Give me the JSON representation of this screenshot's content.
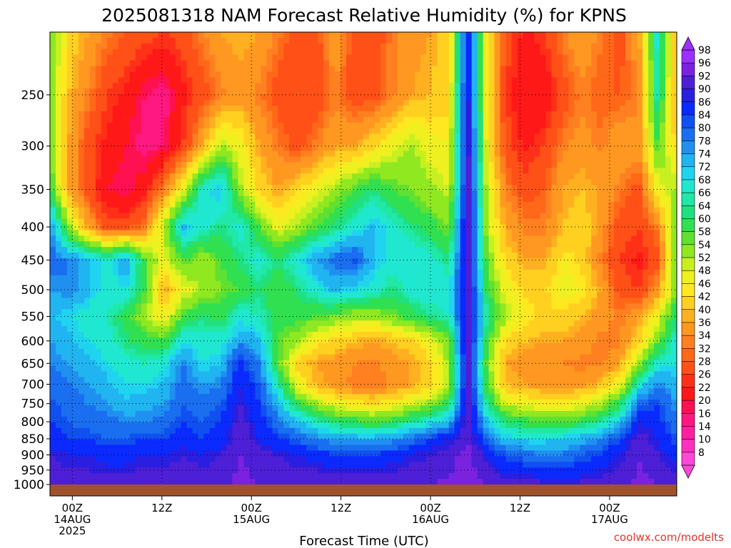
{
  "chart_data": {
    "type": "heatmap",
    "title": "2025081318 NAM Forecast Relative Humidity (%) for KPNS",
    "xlabel": "Forecast Time (UTC)",
    "ylabel": "",
    "credit": "coolwx.com/modelts",
    "y_ticks": [
      "250",
      "300",
      "350",
      "400",
      "450",
      "500",
      "550",
      "600",
      "650",
      "700",
      "750",
      "800",
      "850",
      "900",
      "950",
      "1000"
    ],
    "y_values": [
      250,
      300,
      350,
      400,
      450,
      500,
      550,
      600,
      650,
      700,
      750,
      800,
      850,
      900,
      950,
      1000
    ],
    "y_scale": "log",
    "y_range": [
      200,
      1000
    ],
    "x_ticks": [
      {
        "hour": 0,
        "lines": [
          "00Z",
          "14AUG",
          "2025"
        ]
      },
      {
        "hour": 12,
        "lines": [
          "12Z"
        ]
      },
      {
        "hour": 24,
        "lines": [
          "00Z",
          "15AUG"
        ]
      },
      {
        "hour": 36,
        "lines": [
          "12Z"
        ]
      },
      {
        "hour": 48,
        "lines": [
          "00Z",
          "16AUG"
        ]
      },
      {
        "hour": 60,
        "lines": [
          "12Z"
        ]
      },
      {
        "hour": 72,
        "lines": [
          "00Z",
          "17AUG"
        ]
      }
    ],
    "x_range_hours": [
      -3,
      81
    ],
    "grid": true,
    "legend_placement": "right",
    "colorbar_labels": [
      "98",
      "96",
      "92",
      "90",
      "86",
      "84",
      "80",
      "78",
      "74",
      "72",
      "68",
      "66",
      "64",
      "60",
      "58",
      "54",
      "52",
      "48",
      "46",
      "42",
      "40",
      "36",
      "34",
      "32",
      "28",
      "26",
      "22",
      "20",
      "16",
      "14",
      "10",
      "8"
    ],
    "colorbar_colors": [
      "#9b30ff",
      "#7a22e0",
      "#4d1fd6",
      "#2a1ee0",
      "#0a2aff",
      "#1050f0",
      "#1a6ef0",
      "#2090f0",
      "#20b4f0",
      "#20d4f0",
      "#20e8d0",
      "#20e8a8",
      "#20e080",
      "#30e050",
      "#60e030",
      "#90e820",
      "#c8f020",
      "#eef020",
      "#ffe820",
      "#ffd020",
      "#ffb020",
      "#ff9820",
      "#ff8020",
      "#ff6818",
      "#ff5018",
      "#ff3018",
      "#ff1818",
      "#ff1050",
      "#ff1880",
      "#ff20a0",
      "#ff30c0",
      "#ff48d8"
    ],
    "ground_color": "#a0522d",
    "rh_field": [
      [
        60,
        45,
        40,
        35,
        32,
        30,
        28,
        30,
        35,
        40,
        42,
        40,
        35,
        30,
        30,
        40,
        30,
        28,
        35,
        38,
        40,
        45,
        90,
        50,
        30,
        25,
        28,
        35,
        40,
        35,
        30,
        40,
        70,
        40
      ],
      [
        58,
        42,
        35,
        28,
        25,
        20,
        18,
        25,
        30,
        35,
        38,
        35,
        30,
        28,
        28,
        35,
        30,
        30,
        35,
        40,
        42,
        45,
        92,
        48,
        28,
        22,
        22,
        30,
        35,
        32,
        32,
        35,
        68,
        38
      ],
      [
        60,
        40,
        30,
        25,
        22,
        18,
        20,
        28,
        40,
        55,
        50,
        40,
        35,
        30,
        35,
        40,
        40,
        45,
        50,
        55,
        50,
        48,
        94,
        50,
        30,
        25,
        28,
        35,
        38,
        35,
        40,
        38,
        60,
        45
      ],
      [
        62,
        40,
        30,
        22,
        20,
        25,
        35,
        50,
        70,
        75,
        55,
        45,
        40,
        45,
        50,
        55,
        60,
        65,
        60,
        58,
        55,
        52,
        95,
        52,
        35,
        30,
        32,
        40,
        42,
        40,
        35,
        30,
        50,
        55
      ],
      [
        80,
        55,
        40,
        30,
        30,
        35,
        55,
        75,
        70,
        65,
        70,
        60,
        50,
        55,
        60,
        65,
        70,
        75,
        70,
        65,
        62,
        58,
        96,
        55,
        40,
        35,
        35,
        42,
        45,
        38,
        30,
        28,
        35,
        60
      ],
      [
        82,
        80,
        75,
        70,
        78,
        60,
        50,
        60,
        55,
        60,
        65,
        70,
        65,
        70,
        78,
        82,
        85,
        75,
        70,
        72,
        70,
        65,
        96,
        58,
        45,
        40,
        40,
        48,
        45,
        35,
        28,
        25,
        30,
        62
      ],
      [
        78,
        80,
        75,
        70,
        72,
        60,
        40,
        50,
        55,
        58,
        60,
        65,
        60,
        65,
        70,
        75,
        72,
        70,
        65,
        70,
        72,
        70,
        96,
        62,
        50,
        45,
        45,
        50,
        48,
        40,
        30,
        28,
        38,
        60
      ],
      [
        75,
        72,
        70,
        68,
        62,
        55,
        48,
        60,
        65,
        62,
        70,
        68,
        62,
        62,
        60,
        58,
        55,
        55,
        58,
        62,
        65,
        68,
        96,
        66,
        55,
        48,
        45,
        45,
        42,
        38,
        35,
        40,
        50,
        65
      ],
      [
        78,
        75,
        72,
        70,
        65,
        62,
        60,
        72,
        70,
        70,
        78,
        75,
        60,
        55,
        48,
        45,
        42,
        40,
        42,
        45,
        50,
        58,
        96,
        62,
        45,
        42,
        40,
        40,
        38,
        35,
        35,
        45,
        58,
        70
      ],
      [
        80,
        78,
        75,
        72,
        70,
        68,
        70,
        80,
        72,
        74,
        88,
        80,
        60,
        45,
        40,
        38,
        36,
        35,
        38,
        40,
        45,
        55,
        96,
        58,
        40,
        38,
        36,
        36,
        35,
        35,
        40,
        55,
        70,
        72
      ],
      [
        82,
        80,
        78,
        75,
        72,
        72,
        75,
        82,
        78,
        80,
        90,
        84,
        68,
        50,
        42,
        38,
        35,
        34,
        36,
        40,
        44,
        55,
        96,
        60,
        42,
        40,
        38,
        38,
        38,
        42,
        50,
        70,
        80,
        75
      ],
      [
        85,
        82,
        80,
        78,
        75,
        76,
        78,
        84,
        82,
        84,
        92,
        86,
        75,
        62,
        55,
        50,
        48,
        46,
        48,
        52,
        56,
        62,
        96,
        66,
        52,
        50,
        48,
        48,
        50,
        55,
        62,
        82,
        86,
        78
      ],
      [
        86,
        84,
        82,
        82,
        80,
        80,
        82,
        86,
        84,
        86,
        94,
        88,
        82,
        74,
        68,
        64,
        62,
        60,
        62,
        66,
        70,
        76,
        96,
        74,
        64,
        62,
        60,
        60,
        62,
        66,
        74,
        90,
        88,
        80
      ],
      [
        88,
        86,
        86,
        84,
        84,
        86,
        86,
        88,
        86,
        88,
        95,
        90,
        86,
        84,
        80,
        78,
        76,
        76,
        78,
        82,
        86,
        90,
        96,
        82,
        74,
        72,
        72,
        74,
        76,
        80,
        86,
        94,
        90,
        84
      ],
      [
        92,
        90,
        90,
        88,
        88,
        90,
        90,
        92,
        90,
        92,
        96,
        94,
        92,
        90,
        88,
        86,
        86,
        86,
        88,
        90,
        92,
        94,
        98,
        90,
        84,
        82,
        80,
        80,
        84,
        86,
        90,
        96,
        92,
        88
      ],
      [
        95,
        94,
        94,
        94,
        94,
        95,
        95,
        95,
        95,
        95,
        97,
        96,
        95,
        95,
        96,
        96,
        96,
        95,
        95,
        96,
        96,
        97,
        98,
        96,
        94,
        94,
        93,
        92,
        93,
        94,
        95,
        97,
        96,
        94
      ]
    ],
    "rh_pressures": [
      200,
      250,
      300,
      350,
      400,
      450,
      500,
      550,
      600,
      650,
      700,
      750,
      800,
      850,
      900,
      1000
    ]
  }
}
